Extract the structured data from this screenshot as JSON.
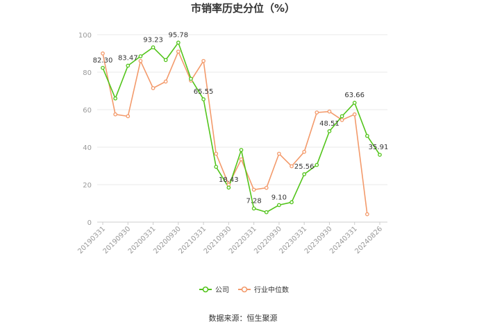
{
  "chart_data": {
    "type": "line",
    "title": "市销率历史分位（%）",
    "xlabel": "",
    "ylabel": "",
    "ylim": [
      0,
      100
    ],
    "yticks": [
      0,
      20,
      40,
      60,
      80,
      100
    ],
    "grid": true,
    "legend_position": "bottom",
    "categories": [
      "20190331",
      "20190630",
      "20190930",
      "20191231",
      "20200331",
      "20200630",
      "20200930",
      "20201231",
      "20210331",
      "20210630",
      "20210930",
      "20211231",
      "20220331",
      "20220630",
      "20220930",
      "20221231",
      "20230331",
      "20230630",
      "20230930",
      "20231231",
      "20240331",
      "20240630",
      "20240826"
    ],
    "xtick_labels": [
      "20190331",
      "20190930",
      "20200331",
      "20200930",
      "20210331",
      "20210930",
      "20220331",
      "20220930",
      "20230331",
      "20230930",
      "20240331",
      "20240826"
    ],
    "series": [
      {
        "name": "公司",
        "color": "#52c41a",
        "values": [
          82.3,
          66,
          83.47,
          88.5,
          93.23,
          86.5,
          95.78,
          76.5,
          65.55,
          29.5,
          18.43,
          38.5,
          7.28,
          5.3,
          9.1,
          10.6,
          25.56,
          30.5,
          48.51,
          56.5,
          63.66,
          46,
          35.91
        ]
      },
      {
        "name": "行业中位数",
        "color": "#f39a6b",
        "values": [
          90,
          57.5,
          56.5,
          86,
          71.5,
          75,
          91,
          75.5,
          86,
          36.5,
          20,
          33.5,
          17.3,
          18.3,
          36.5,
          29.8,
          37.5,
          58.5,
          59,
          54.5,
          57.5,
          4.2,
          null
        ]
      }
    ],
    "annotations": [
      {
        "series": 0,
        "index": 0,
        "text": "82.30"
      },
      {
        "series": 0,
        "index": 2,
        "text": "83.47"
      },
      {
        "series": 0,
        "index": 4,
        "text": "93.23"
      },
      {
        "series": 0,
        "index": 6,
        "text": "95.78"
      },
      {
        "series": 0,
        "index": 8,
        "text": "65.55"
      },
      {
        "series": 0,
        "index": 10,
        "text": "18.43"
      },
      {
        "series": 0,
        "index": 12,
        "text": "7.28"
      },
      {
        "series": 0,
        "index": 14,
        "text": "9.10"
      },
      {
        "series": 0,
        "index": 16,
        "text": "25.56"
      },
      {
        "series": 0,
        "index": 18,
        "text": "48.51"
      },
      {
        "series": 0,
        "index": 20,
        "text": "63.66"
      },
      {
        "series": 0,
        "index": 22,
        "text": "35.91"
      }
    ]
  },
  "source_text": "数据来源：恒生聚源"
}
